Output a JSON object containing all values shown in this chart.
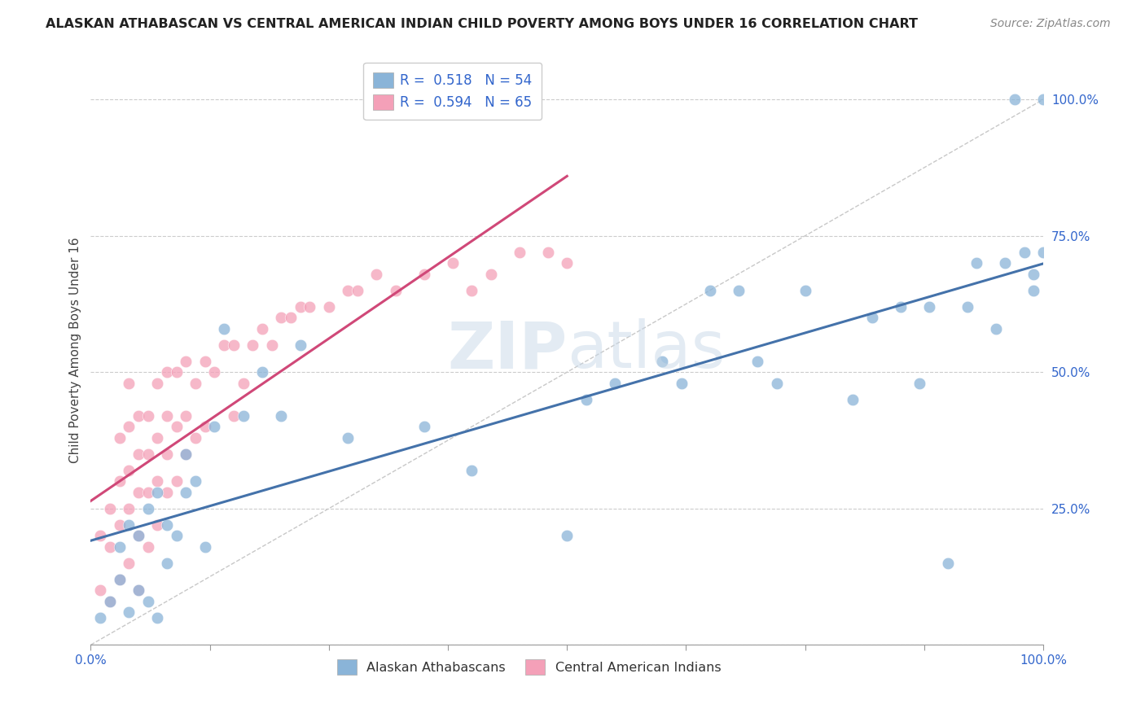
{
  "title": "ALASKAN ATHABASCAN VS CENTRAL AMERICAN INDIAN CHILD POVERTY AMONG BOYS UNDER 16 CORRELATION CHART",
  "source": "Source: ZipAtlas.com",
  "ylabel": "Child Poverty Among Boys Under 16",
  "legend_label1": "Alaskan Athabascans",
  "legend_label2": "Central American Indians",
  "R1": 0.518,
  "N1": 54,
  "R2": 0.594,
  "N2": 65,
  "color_blue": "#8ab4d8",
  "color_pink": "#f4a0b8",
  "color_blue_line": "#4472aa",
  "color_pink_line": "#d04878",
  "color_diag": "#c8c8c8",
  "blue_x": [
    0.01,
    0.02,
    0.03,
    0.03,
    0.04,
    0.04,
    0.05,
    0.05,
    0.06,
    0.06,
    0.07,
    0.07,
    0.08,
    0.08,
    0.09,
    0.1,
    0.1,
    0.11,
    0.12,
    0.13,
    0.14,
    0.16,
    0.18,
    0.2,
    0.22,
    0.27,
    0.35,
    0.4,
    0.5,
    0.52,
    0.55,
    0.6,
    0.62,
    0.65,
    0.68,
    0.7,
    0.72,
    0.75,
    0.8,
    0.82,
    0.85,
    0.87,
    0.88,
    0.9,
    0.92,
    0.93,
    0.95,
    0.96,
    0.97,
    0.98,
    0.99,
    0.99,
    1.0,
    1.0
  ],
  "blue_y": [
    0.05,
    0.08,
    0.12,
    0.18,
    0.06,
    0.22,
    0.1,
    0.2,
    0.08,
    0.25,
    0.05,
    0.28,
    0.15,
    0.22,
    0.2,
    0.28,
    0.35,
    0.3,
    0.18,
    0.4,
    0.58,
    0.42,
    0.5,
    0.42,
    0.55,
    0.38,
    0.4,
    0.32,
    0.2,
    0.45,
    0.48,
    0.52,
    0.48,
    0.65,
    0.65,
    0.52,
    0.48,
    0.65,
    0.45,
    0.6,
    0.62,
    0.48,
    0.62,
    0.15,
    0.62,
    0.7,
    0.58,
    0.7,
    1.0,
    0.72,
    0.68,
    0.65,
    1.0,
    0.72
  ],
  "pink_x": [
    0.01,
    0.01,
    0.02,
    0.02,
    0.02,
    0.03,
    0.03,
    0.03,
    0.03,
    0.04,
    0.04,
    0.04,
    0.04,
    0.04,
    0.05,
    0.05,
    0.05,
    0.05,
    0.05,
    0.06,
    0.06,
    0.06,
    0.06,
    0.07,
    0.07,
    0.07,
    0.07,
    0.08,
    0.08,
    0.08,
    0.08,
    0.09,
    0.09,
    0.09,
    0.1,
    0.1,
    0.1,
    0.11,
    0.11,
    0.12,
    0.12,
    0.13,
    0.14,
    0.15,
    0.15,
    0.16,
    0.17,
    0.18,
    0.19,
    0.2,
    0.21,
    0.22,
    0.23,
    0.25,
    0.27,
    0.28,
    0.3,
    0.32,
    0.35,
    0.38,
    0.4,
    0.42,
    0.45,
    0.48,
    0.5
  ],
  "pink_y": [
    0.1,
    0.2,
    0.08,
    0.18,
    0.25,
    0.12,
    0.22,
    0.3,
    0.38,
    0.15,
    0.25,
    0.32,
    0.4,
    0.48,
    0.1,
    0.2,
    0.28,
    0.35,
    0.42,
    0.18,
    0.28,
    0.35,
    0.42,
    0.22,
    0.3,
    0.38,
    0.48,
    0.28,
    0.35,
    0.42,
    0.5,
    0.3,
    0.4,
    0.5,
    0.35,
    0.42,
    0.52,
    0.38,
    0.48,
    0.4,
    0.52,
    0.5,
    0.55,
    0.42,
    0.55,
    0.48,
    0.55,
    0.58,
    0.55,
    0.6,
    0.6,
    0.62,
    0.62,
    0.62,
    0.65,
    0.65,
    0.68,
    0.65,
    0.68,
    0.7,
    0.65,
    0.68,
    0.72,
    0.72,
    0.7
  ]
}
